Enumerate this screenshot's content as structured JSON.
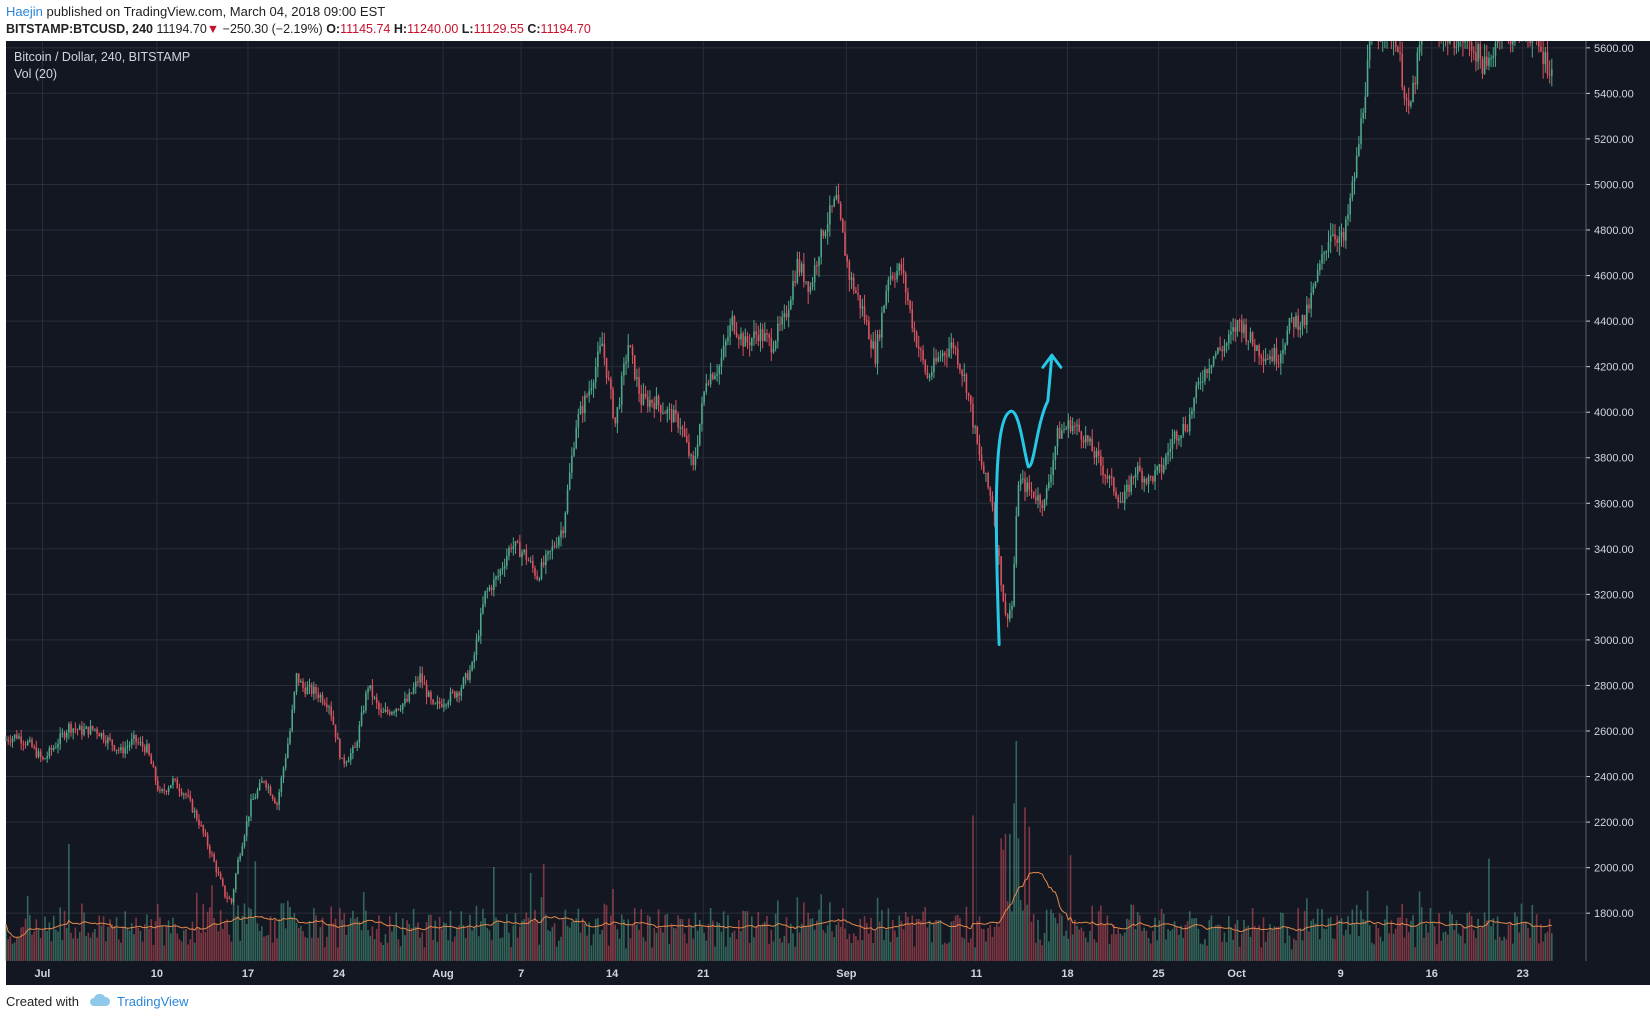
{
  "header": {
    "user": "Haejin",
    "published_text": "published on TradingView.com, March 04, 2018 09:00 EST",
    "symbol": "BITSTAMP:BTCUSD, 240",
    "last": "11194.70",
    "change_arrow": "▼",
    "change": "−250.30 (−2.19%)",
    "o_label": "O:",
    "o_value": "11145.74",
    "h_label": "H:",
    "h_value": "11240.00",
    "l_label": "L:",
    "l_value": "11129.55",
    "c_label": "C:",
    "c_value": "11194.70"
  },
  "legend": {
    "title": "Bitcoin / Dollar, 240, BITSTAMP",
    "volume": "Vol (20)"
  },
  "footer": {
    "created_with": "Created with",
    "brand": "TradingView"
  },
  "colors": {
    "background": "#131722",
    "grid": "#2a2e39",
    "up": "#4fa88a",
    "down": "#d9545f",
    "vol_ma": "#e3884a",
    "annotation": "#27c7e6",
    "axis_text": "#d1d4dc"
  },
  "chart_data": {
    "type": "candlestick",
    "title": "Bitcoin / Dollar, 240, BITSTAMP",
    "ylim": [
      1590,
      5630
    ],
    "y_ticks": [
      1800,
      2000,
      2200,
      2400,
      2600,
      2800,
      3000,
      3200,
      3400,
      3600,
      3800,
      4000,
      4200,
      4400,
      4600,
      4800,
      5000,
      5200,
      5400,
      5600
    ],
    "y_tick_labels": [
      "1800.00",
      "2000.00",
      "2200.00",
      "2400.00",
      "2600.00",
      "2800.00",
      "3000.00",
      "3200.00",
      "3400.00",
      "3600.00",
      "3800.00",
      "4000.00",
      "4200.00",
      "4400.00",
      "4600.00",
      "4800.00",
      "5000.00",
      "5200.00",
      "5400.00",
      "5600.00"
    ],
    "x_range_days": [
      0,
      121
    ],
    "x_ticks": [
      {
        "day": 2.8,
        "label": "Jul"
      },
      {
        "day": 11.6,
        "label": "10"
      },
      {
        "day": 18.6,
        "label": "17"
      },
      {
        "day": 25.6,
        "label": "24"
      },
      {
        "day": 33.6,
        "label": "Aug"
      },
      {
        "day": 39.6,
        "label": "7"
      },
      {
        "day": 46.6,
        "label": "14"
      },
      {
        "day": 53.6,
        "label": "21"
      },
      {
        "day": 64.6,
        "label": "Sep"
      },
      {
        "day": 74.6,
        "label": "11"
      },
      {
        "day": 81.6,
        "label": "18"
      },
      {
        "day": 88.6,
        "label": "25"
      },
      {
        "day": 94.6,
        "label": "Oct"
      },
      {
        "day": 102.6,
        "label": "9"
      },
      {
        "day": 109.6,
        "label": "16"
      },
      {
        "day": 116.6,
        "label": "23"
      }
    ],
    "price_path_days": [
      0,
      1,
      2,
      3,
      4,
      5,
      6,
      7,
      8,
      9,
      10,
      11,
      12,
      13,
      14,
      15,
      16,
      17,
      17.5,
      18,
      19,
      20,
      21,
      22,
      22.5,
      23,
      24,
      25,
      26,
      27,
      28,
      29,
      30,
      31,
      32,
      33,
      34,
      35,
      36,
      37,
      38,
      39,
      40,
      41,
      42,
      43,
      44,
      45,
      46,
      47,
      48,
      49,
      50,
      51,
      52,
      53,
      54,
      55,
      56,
      57,
      58,
      59,
      60,
      61,
      62,
      63,
      64,
      65,
      66,
      67,
      68,
      69,
      70,
      71,
      72,
      73,
      74,
      75,
      76,
      77,
      77.5,
      78,
      79,
      80,
      81,
      82,
      83,
      84,
      85,
      86,
      87,
      88,
      89,
      90,
      91,
      92,
      93,
      94,
      95,
      96,
      97,
      98,
      99,
      100,
      101,
      102,
      103,
      104,
      105,
      106,
      107,
      108,
      109,
      110,
      111,
      112,
      113,
      114,
      115,
      116,
      117,
      118,
      119
    ],
    "price_path_close": [
      2560,
      2580,
      2540,
      2470,
      2540,
      2620,
      2600,
      2610,
      2560,
      2510,
      2560,
      2520,
      2320,
      2380,
      2320,
      2200,
      2050,
      1880,
      1850,
      2030,
      2280,
      2390,
      2280,
      2600,
      2840,
      2790,
      2770,
      2720,
      2460,
      2520,
      2800,
      2670,
      2700,
      2730,
      2840,
      2700,
      2740,
      2780,
      2880,
      3200,
      3280,
      3420,
      3380,
      3280,
      3380,
      3500,
      3950,
      4100,
      4300,
      3950,
      4300,
      4050,
      4050,
      4000,
      3950,
      3750,
      4150,
      4200,
      4400,
      4300,
      4350,
      4300,
      4400,
      4650,
      4550,
      4800,
      4930,
      4600,
      4450,
      4250,
      4600,
      4630,
      4350,
      4150,
      4250,
      4300,
      4120,
      3800,
      3600,
      3100,
      3150,
      3700,
      3650,
      3600,
      3900,
      3950,
      3900,
      3800,
      3700,
      3600,
      3750,
      3700,
      3750,
      3900,
      3950,
      4150,
      4250,
      4300,
      4400,
      4300,
      4250,
      4250,
      4400,
      4400,
      4600,
      4800,
      4750,
      5100,
      5600,
      5700,
      5650,
      5300,
      5650,
      5700,
      5650,
      5650,
      5600,
      5500,
      5700,
      5650,
      5700,
      5600,
      5500
    ],
    "annotation": "hand-drawn cyan arrow: dip to ~3000 then upward recovery arrow"
  }
}
